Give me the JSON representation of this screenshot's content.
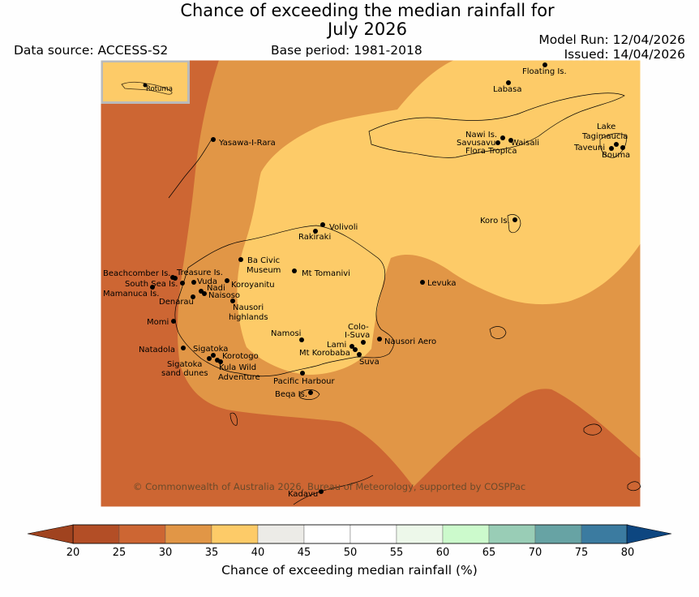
{
  "header": {
    "title_line1": "Chance of exceeding the median rainfall for",
    "title_line2": "July 2026",
    "data_source": "Data source: ACCESS-S2",
    "base_period": "Base period: 1981-2018",
    "model_run": "Model Run: 12/04/2026",
    "issued": "Issued: 14/04/2026"
  },
  "map": {
    "inset_label": "Rotuma",
    "copyright": "© Commonwealth of Australia 2026, Bureau of Meteorology, supported by COSPPac",
    "places": {
      "floating": "Floating Is.",
      "labasa": "Labasa",
      "yasawa": "Yasawa-I-Rara",
      "nawi": "Nawi Is.",
      "savusavu": "Savusavu",
      "waisali": "Waisali",
      "flora": "Flora Tropica",
      "lake_tag1": "Lake",
      "lake_tag2": "Tagimaucia",
      "taveuni": "Taveuni",
      "bouma": "Bouma",
      "koro": "Koro Is.",
      "volivoli": "Volivoli",
      "rakiraki": "Rakiraki",
      "ba1": "Ba Civic",
      "ba2": "Museum",
      "tomanivi": "Mt Tomanivi",
      "beachcomber": "Beachcomber Is.",
      "treasure": "Treasure Is.",
      "southsea": "South Sea Is.",
      "vuda": "Vuda",
      "koroyanitu": "Koroyanitu",
      "mamanuca": "Mamanuca Is.",
      "nadi": "Nadi",
      "naisoso": "Naisoso",
      "levuka": "Levuka",
      "denarau": "Denarau",
      "nausori_hl1": "Nausori",
      "nausori_hl2": "highlands",
      "momi": "Momi",
      "colo1": "Colo-",
      "colo2": "I-Suva",
      "namosi": "Namosi",
      "lami": "Lami",
      "nausori_aero": "Nausori Aero",
      "natadola": "Natadola",
      "sigatoka": "Sigatoka",
      "korobaba": "Mt Korobaba",
      "korotogo": "Korotogo",
      "suva": "Suva",
      "sig_dunes1": "Sigatoka",
      "sig_dunes2": "sand dunes",
      "kula1": "Kula Wild",
      "kula2": "Adventure",
      "pacific": "Pacific Harbour",
      "beqa": "Beqa Is.",
      "kadavu": "Kadavu"
    }
  },
  "legend": {
    "title": "Chance of exceeding median rainfall (%)",
    "ticks": [
      "20",
      "25",
      "30",
      "35",
      "40",
      "45",
      "50",
      "55",
      "60",
      "65",
      "70",
      "75",
      "80"
    ],
    "colors": [
      "#b34e26",
      "#cd6633",
      "#e19646",
      "#fdcb68",
      "#ecebe7",
      "#ffffff",
      "#ffffff",
      "#edf8ea",
      "#ccfacc",
      "#99cdb6",
      "#67a3a4",
      "#3b7ba0",
      "#1a4d85"
    ],
    "under_color": "#a0431f",
    "over_color": "#0d4680"
  }
}
